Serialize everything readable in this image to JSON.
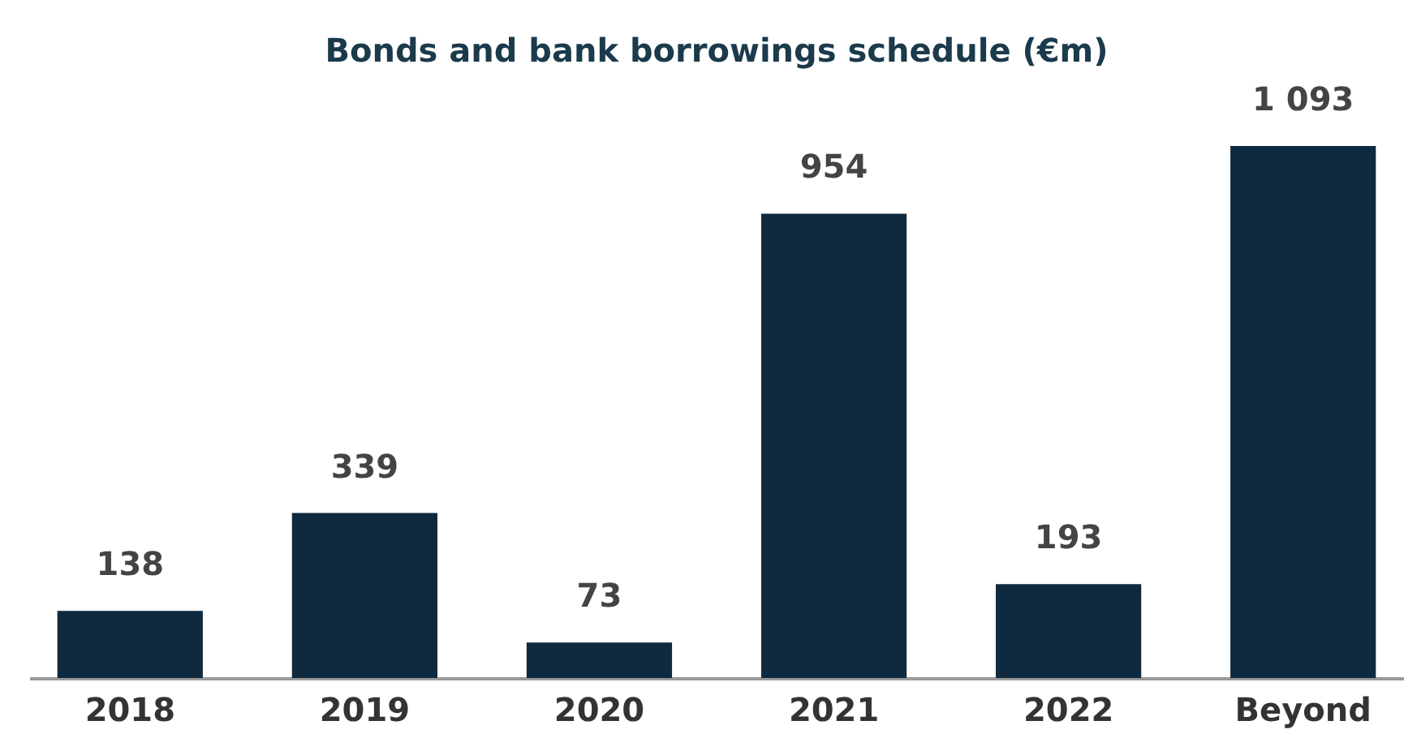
{
  "chart_data": {
    "type": "bar",
    "title": "Bonds and bank borrowings schedule (€m)",
    "categories": [
      "2018",
      "2019",
      "2020",
      "2021",
      "2022",
      "Beyond"
    ],
    "values": [
      138,
      339,
      73,
      954,
      193,
      1093
    ],
    "value_labels": [
      "138",
      "339",
      "73",
      "954",
      "193",
      "1 093"
    ],
    "color": "#0f2a3f"
  }
}
